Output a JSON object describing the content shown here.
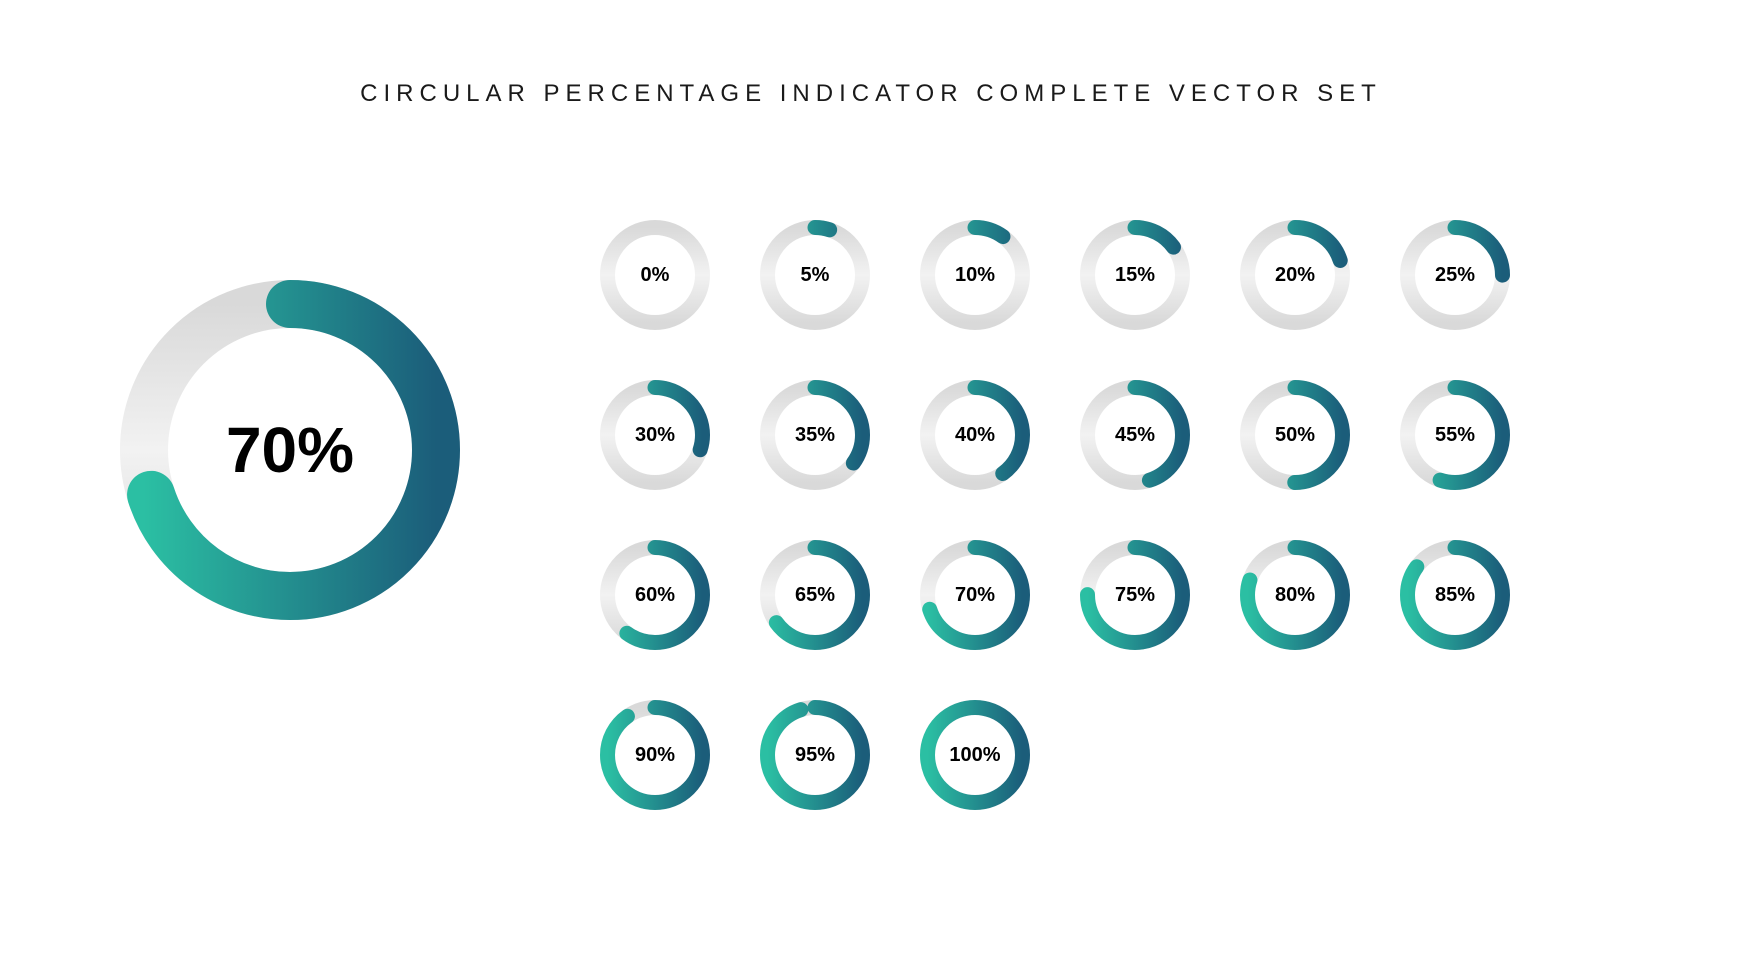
{
  "title": "CIRCULAR PERCENTAGE INDICATOR COMPLETE VECTOR SET",
  "style": {
    "background": "#ffffff",
    "track_light": "#f2f2f2",
    "track_dark": "#d9d9d9",
    "arc_start_color": "#2bbfa3",
    "arc_end_color": "#1b5d7a",
    "label_color": "#000000",
    "title_color": "#1a1a1a",
    "title_fontsize": 24,
    "title_letter_spacing": 6,
    "hero_label_fontsize": 64,
    "small_label_fontsize": 20
  },
  "hero": {
    "percent": 70,
    "label": "70%",
    "diameter": 340,
    "stroke": 48
  },
  "small_ring": {
    "diameter": 110,
    "stroke": 15
  },
  "items": [
    {
      "percent": 0,
      "label": "0%"
    },
    {
      "percent": 5,
      "label": "5%"
    },
    {
      "percent": 10,
      "label": "10%"
    },
    {
      "percent": 15,
      "label": "15%"
    },
    {
      "percent": 20,
      "label": "20%"
    },
    {
      "percent": 25,
      "label": "25%"
    },
    {
      "percent": 30,
      "label": "30%"
    },
    {
      "percent": 35,
      "label": "35%"
    },
    {
      "percent": 40,
      "label": "40%"
    },
    {
      "percent": 45,
      "label": "45%"
    },
    {
      "percent": 50,
      "label": "50%"
    },
    {
      "percent": 55,
      "label": "55%"
    },
    {
      "percent": 60,
      "label": "60%"
    },
    {
      "percent": 65,
      "label": "65%"
    },
    {
      "percent": 70,
      "label": "70%"
    },
    {
      "percent": 75,
      "label": "75%"
    },
    {
      "percent": 80,
      "label": "80%"
    },
    {
      "percent": 85,
      "label": "85%"
    },
    {
      "percent": 90,
      "label": "90%"
    },
    {
      "percent": 95,
      "label": "95%"
    },
    {
      "percent": 100,
      "label": "100%"
    }
  ]
}
